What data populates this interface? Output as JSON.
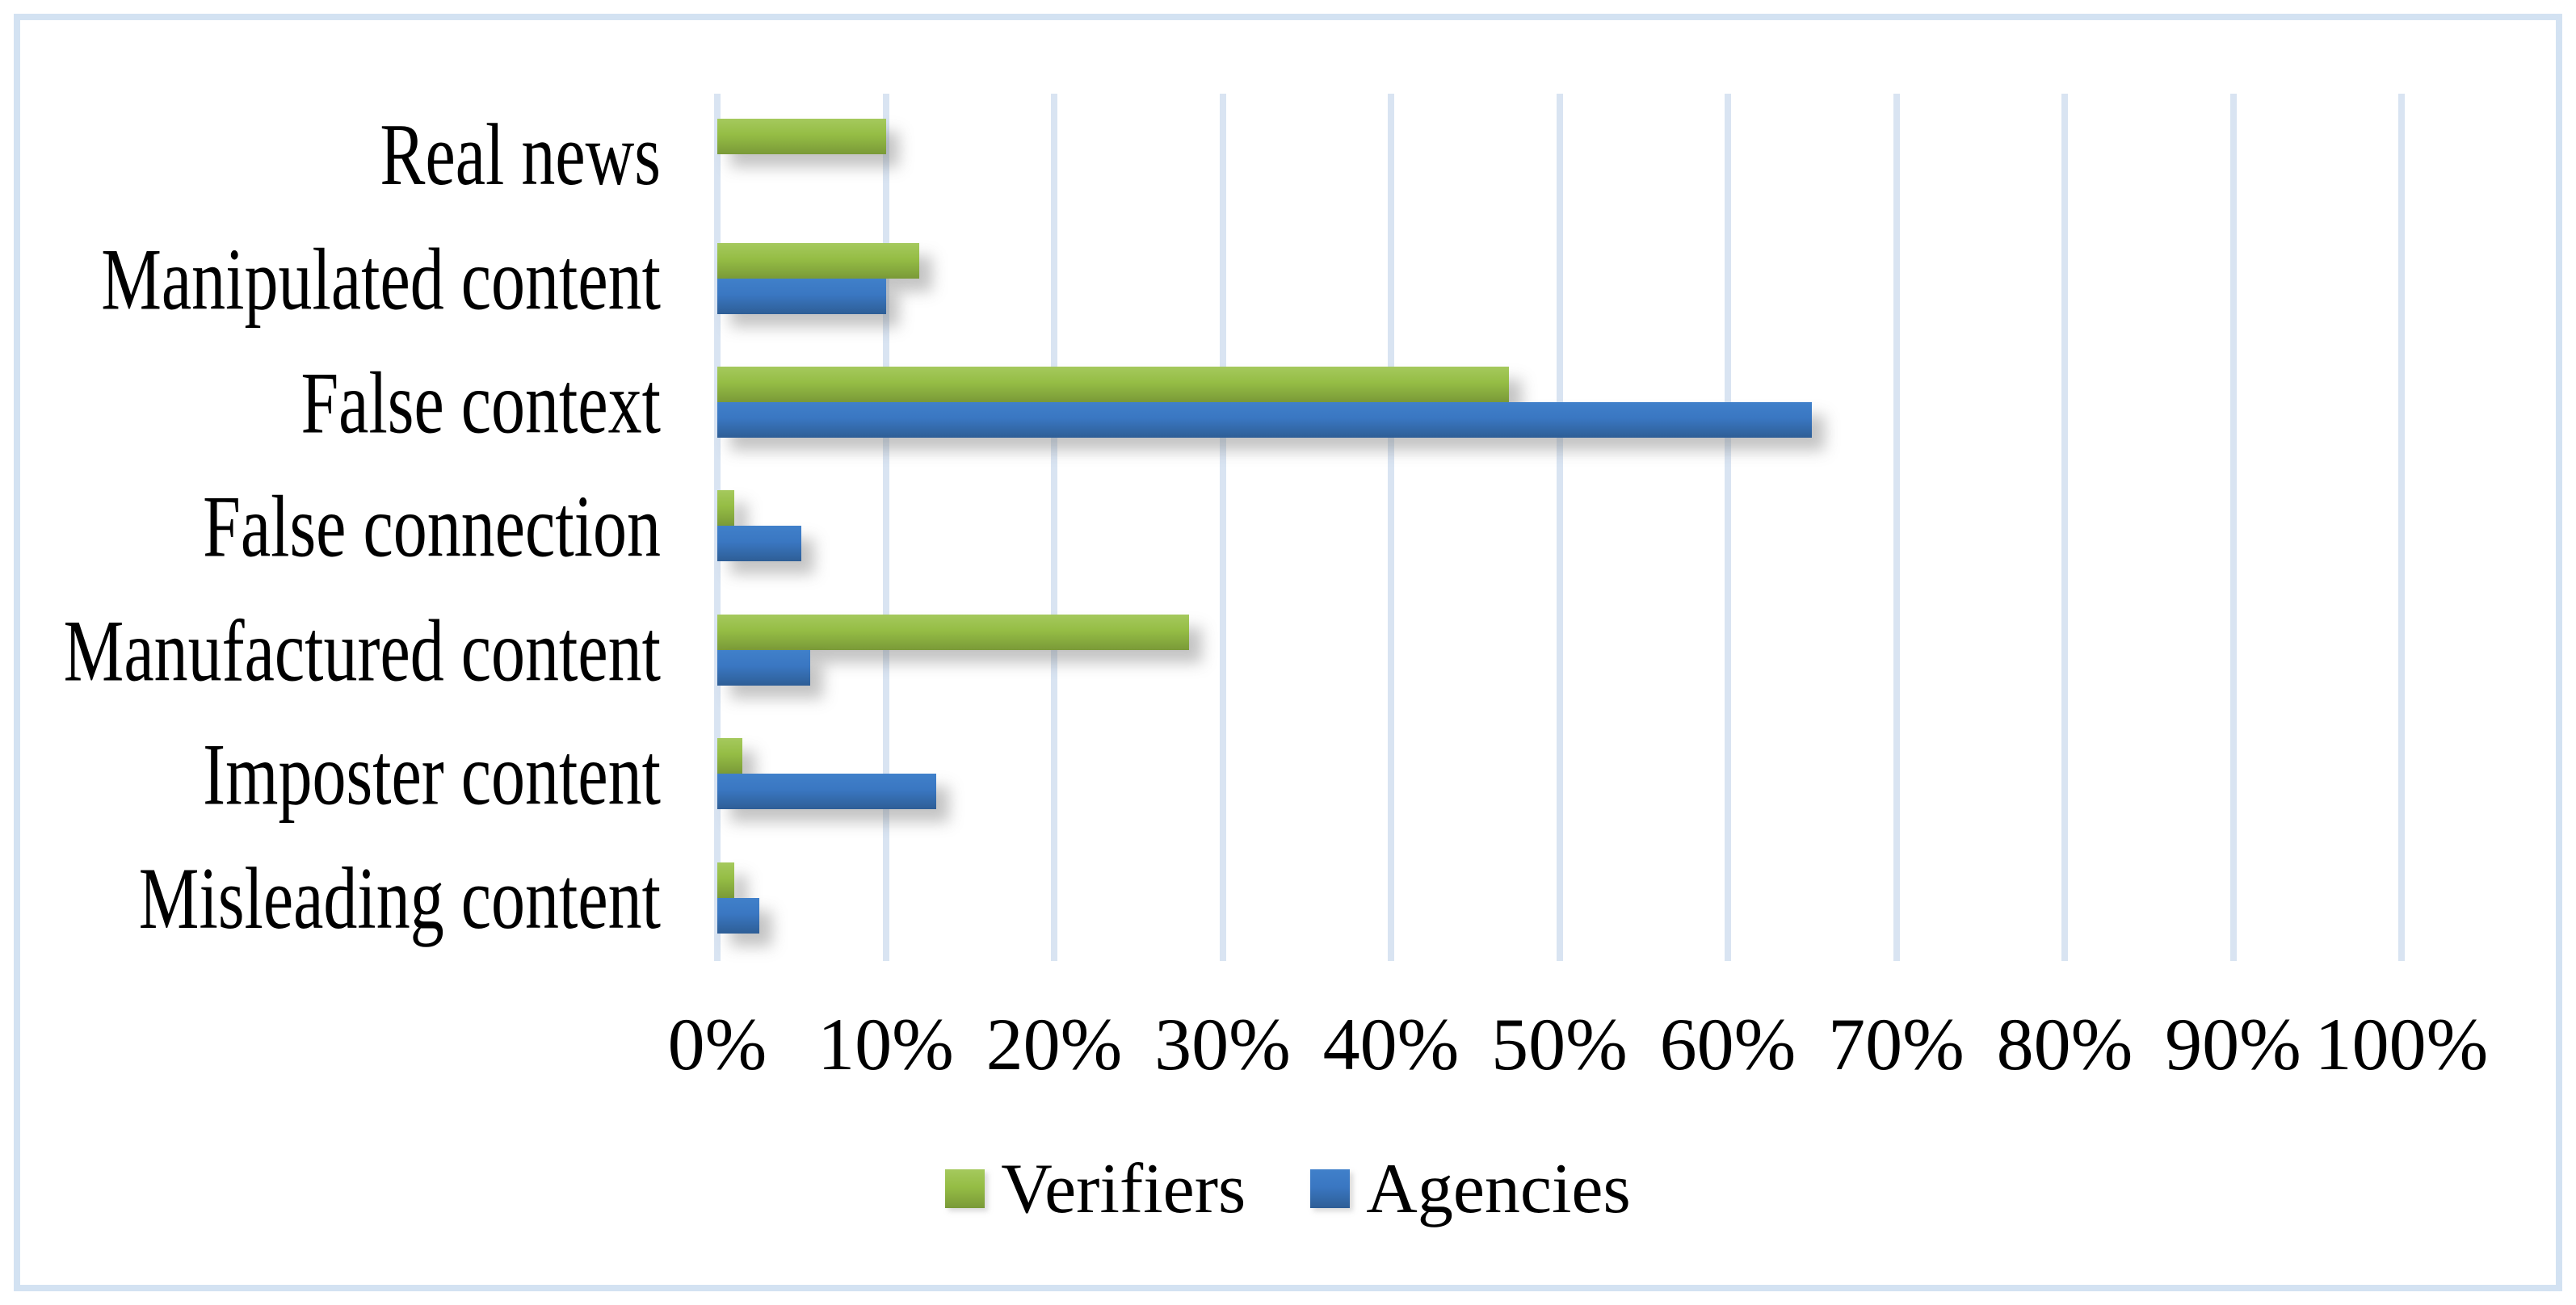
{
  "chart_data": {
    "type": "bar",
    "orientation": "horizontal",
    "title": "",
    "xlabel": "",
    "ylabel": "",
    "categories": [
      "Real news",
      "Manipulated content",
      "False context",
      "False connection",
      "Manufactured content",
      "Imposter content",
      "Misleading content"
    ],
    "series": [
      {
        "name": "Verifiers",
        "values": [
          10,
          12,
          47,
          1,
          28,
          1.5,
          1
        ],
        "color_top": "#a5c95d",
        "color_mid": "#95bd45",
        "color_bottom": "#7a9a38"
      },
      {
        "name": "Agencies",
        "values": [
          0,
          10,
          65,
          5,
          5.5,
          13,
          2.5
        ],
        "color_top": "#4080ca",
        "color_mid": "#3a77c2",
        "color_bottom": "#2e5e96"
      }
    ],
    "x_axis": {
      "min": 0,
      "max": 100,
      "tick_step": 10,
      "tick_labels": [
        "0%",
        "10%",
        "20%",
        "30%",
        "40%",
        "50%",
        "60%",
        "70%",
        "80%",
        "90%",
        "100%"
      ]
    },
    "grid": true,
    "gridline_color": "#d9e4f2",
    "figure_border_color": "#d3e2f2",
    "legend_position": "bottom",
    "legend_entries": [
      "Verifiers",
      "Agencies"
    ]
  }
}
